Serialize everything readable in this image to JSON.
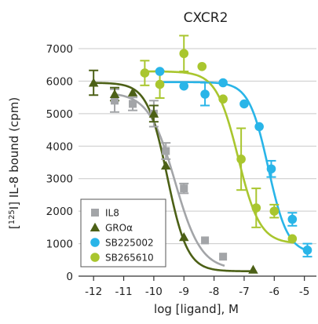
{
  "chart_data": {
    "type": "scatter",
    "title": "CXCR2",
    "xlabel": "log [ligand], M",
    "ylabel_sup": "125",
    "ylabel_prefix": "[",
    "ylabel_suffix": "I] IL-8 bound (cpm)",
    "xlim": [
      -12.5,
      -4.6
    ],
    "ylim": [
      0,
      7000
    ],
    "x_ticks": [
      -12,
      -11,
      -10,
      -9,
      -8,
      -7,
      -6,
      -5
    ],
    "x_tick_labels": [
      "-12",
      "-11",
      "-10",
      "-9",
      "-8",
      "-7",
      "-6",
      "-5"
    ],
    "y_ticks": [
      0,
      1000,
      2000,
      3000,
      4000,
      5000,
      6000,
      7000
    ],
    "y_tick_labels": [
      "0",
      "1000",
      "2000",
      "3000",
      "4000",
      "5000",
      "6000",
      "7000"
    ],
    "grid": "horizontal",
    "legend_position": "bottom-left",
    "series": [
      {
        "name": "IL8",
        "marker": "square",
        "color": "#a3a5a8",
        "points": [
          {
            "x": -11.3,
            "y": 5400,
            "err": 350
          },
          {
            "x": -10.7,
            "y": 5300,
            "err": 200
          },
          {
            "x": -10.0,
            "y": 5000,
            "err": 400
          },
          {
            "x": -9.6,
            "y": 3850,
            "err": 250
          },
          {
            "x": -9.0,
            "y": 2700,
            "err": 150
          },
          {
            "x": -8.3,
            "y": 1100,
            "err": 0
          },
          {
            "x": -7.7,
            "y": 600,
            "err": 0
          }
        ],
        "curve": {
          "top": 5650,
          "bottom": 200,
          "logEC50": -9.3,
          "hill": 1.0
        }
      },
      {
        "name": "GROα",
        "marker": "triangle",
        "color": "#4c6016",
        "points": [
          {
            "x": -12.0,
            "y": 5950,
            "err": 380
          },
          {
            "x": -11.3,
            "y": 5600,
            "err": 200
          },
          {
            "x": -10.7,
            "y": 5650,
            "err": 0
          },
          {
            "x": -10.0,
            "y": 5000,
            "err": 250
          },
          {
            "x": -9.6,
            "y": 3400,
            "err": 0
          },
          {
            "x": -9.0,
            "y": 1200,
            "err": 0
          },
          {
            "x": -6.7,
            "y": 200,
            "err": 0
          }
        ],
        "curve": {
          "top": 5950,
          "bottom": 150,
          "logEC50": -9.55,
          "hill": 1.3
        }
      },
      {
        "name": "SB225002",
        "marker": "circle",
        "color": "#29b5e8",
        "points": [
          {
            "x": -9.8,
            "y": 6300,
            "err": 0
          },
          {
            "x": -9.0,
            "y": 5850,
            "err": 0
          },
          {
            "x": -8.3,
            "y": 5600,
            "err": 350
          },
          {
            "x": -7.7,
            "y": 5950,
            "err": 0
          },
          {
            "x": -7.0,
            "y": 5300,
            "err": 0
          },
          {
            "x": -6.5,
            "y": 4600,
            "err": 0
          },
          {
            "x": -6.1,
            "y": 3300,
            "err": 250
          },
          {
            "x": -5.4,
            "y": 1750,
            "err": 200
          },
          {
            "x": -4.9,
            "y": 800,
            "err": 200
          }
        ],
        "curve": {
          "top": 5970,
          "bottom": 700,
          "logEC50": -6.2,
          "hill": 1.35
        }
      },
      {
        "name": "SB265610",
        "marker": "circle",
        "color": "#a9c62e",
        "points": [
          {
            "x": -10.3,
            "y": 6250,
            "err": 380
          },
          {
            "x": -9.8,
            "y": 5900,
            "err": 420
          },
          {
            "x": -9.0,
            "y": 6850,
            "err": 550
          },
          {
            "x": -8.4,
            "y": 6450,
            "err": 0
          },
          {
            "x": -7.7,
            "y": 5450,
            "err": 0
          },
          {
            "x": -7.1,
            "y": 3600,
            "err": 950
          },
          {
            "x": -6.6,
            "y": 2100,
            "err": 600
          },
          {
            "x": -6.0,
            "y": 2000,
            "err": 200
          },
          {
            "x": -5.4,
            "y": 1150,
            "err": 0
          }
        ],
        "curve": {
          "top": 6300,
          "bottom": 1000,
          "logEC50": -7.2,
          "hill": 1.2
        }
      }
    ]
  }
}
